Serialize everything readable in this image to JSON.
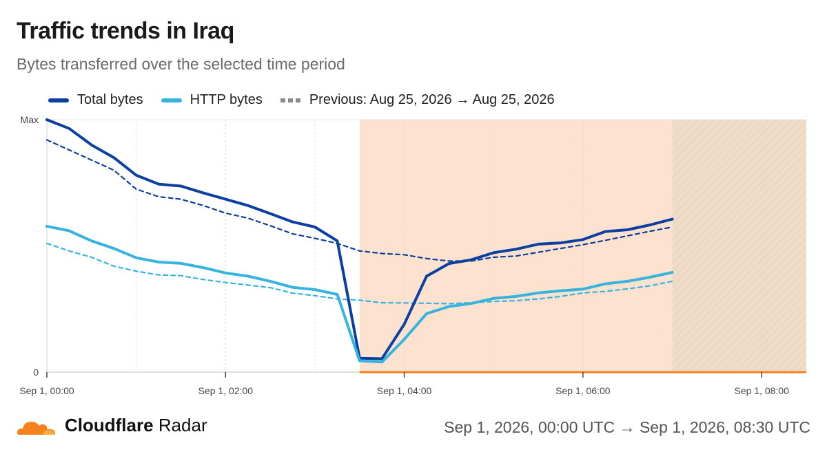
{
  "header": {
    "title": "Traffic trends in Iraq",
    "subtitle": "Bytes transferred over the selected time period"
  },
  "legend": {
    "total": "Total bytes",
    "http": "HTTP bytes",
    "previous": "Previous: Aug 25, 2026 → Aug 25, 2026"
  },
  "footer": {
    "brand_bold": "Cloudflare",
    "brand_rest": "Radar",
    "range": "Sep 1, 2026, 00:00 UTC → Sep 1, 2026, 08:30 UTC"
  },
  "colors": {
    "total": "#0b3fa0",
    "http": "#36b4de",
    "highlight": "#fde3cf",
    "incomplete": "#efdcc8",
    "accent": "#f6821f"
  },
  "chart_data": {
    "type": "line",
    "x_unit": "hours since Sep 1, 00:00 UTC",
    "xlim": [
      0,
      8.5
    ],
    "ylim": [
      0,
      1
    ],
    "y_ticks": [
      {
        "value": 0,
        "label": "0"
      },
      {
        "value": 1,
        "label": "Max"
      }
    ],
    "x_ticks": [
      {
        "value": 0,
        "label": "Sep 1, 00:00"
      },
      {
        "value": 2,
        "label": "Sep 1, 02:00"
      },
      {
        "value": 4,
        "label": "Sep 1, 04:00"
      },
      {
        "value": 6,
        "label": "Sep 1, 06:00"
      },
      {
        "value": 8,
        "label": "Sep 1, 08:00"
      }
    ],
    "grid_x": [
      1,
      2,
      3,
      4,
      5,
      6,
      7,
      8
    ],
    "highlight_range": [
      3.5,
      7.0
    ],
    "incomplete_range": [
      7.0,
      8.5
    ],
    "x": [
      0,
      0.25,
      0.5,
      0.75,
      1,
      1.25,
      1.5,
      1.75,
      2,
      2.25,
      2.5,
      2.75,
      3,
      3.25,
      3.5,
      3.75,
      4,
      4.25,
      4.5,
      4.75,
      5,
      5.25,
      5.5,
      5.75,
      6,
      6.25,
      6.5,
      6.75,
      7
    ],
    "series": [
      {
        "name": "Total bytes",
        "key": "total",
        "style": "solid",
        "values": [
          1.0,
          0.965,
          0.9,
          0.85,
          0.78,
          0.745,
          0.737,
          0.71,
          0.685,
          0.66,
          0.628,
          0.595,
          0.575,
          0.52,
          0.055,
          0.053,
          0.19,
          0.38,
          0.43,
          0.445,
          0.473,
          0.487,
          0.507,
          0.512,
          0.525,
          0.557,
          0.564,
          0.583,
          0.606
        ]
      },
      {
        "name": "HTTP bytes",
        "key": "http",
        "style": "solid",
        "values": [
          0.578,
          0.56,
          0.52,
          0.49,
          0.453,
          0.436,
          0.431,
          0.414,
          0.393,
          0.38,
          0.36,
          0.336,
          0.327,
          0.308,
          0.045,
          0.04,
          0.13,
          0.232,
          0.26,
          0.272,
          0.292,
          0.3,
          0.314,
          0.322,
          0.329,
          0.35,
          0.36,
          0.376,
          0.395
        ]
      },
      {
        "name": "Previous: Aug 25, 2026 → Aug 25, 2026",
        "key": "total_prev",
        "style": "dashed",
        "values": [
          0.92,
          0.88,
          0.84,
          0.8,
          0.725,
          0.695,
          0.685,
          0.66,
          0.63,
          0.61,
          0.58,
          0.548,
          0.53,
          0.51,
          0.48,
          0.47,
          0.465,
          0.45,
          0.44,
          0.44,
          0.455,
          0.46,
          0.475,
          0.49,
          0.505,
          0.522,
          0.54,
          0.558,
          0.575
        ]
      },
      {
        "name": "Previous: Aug 25, 2026 → Aug 25, 2026",
        "key": "http_prev",
        "style": "dashed",
        "values": [
          0.51,
          0.48,
          0.455,
          0.42,
          0.4,
          0.385,
          0.382,
          0.367,
          0.355,
          0.345,
          0.335,
          0.313,
          0.303,
          0.29,
          0.285,
          0.275,
          0.274,
          0.273,
          0.271,
          0.275,
          0.28,
          0.283,
          0.29,
          0.3,
          0.314,
          0.32,
          0.33,
          0.342,
          0.36
        ]
      }
    ]
  }
}
